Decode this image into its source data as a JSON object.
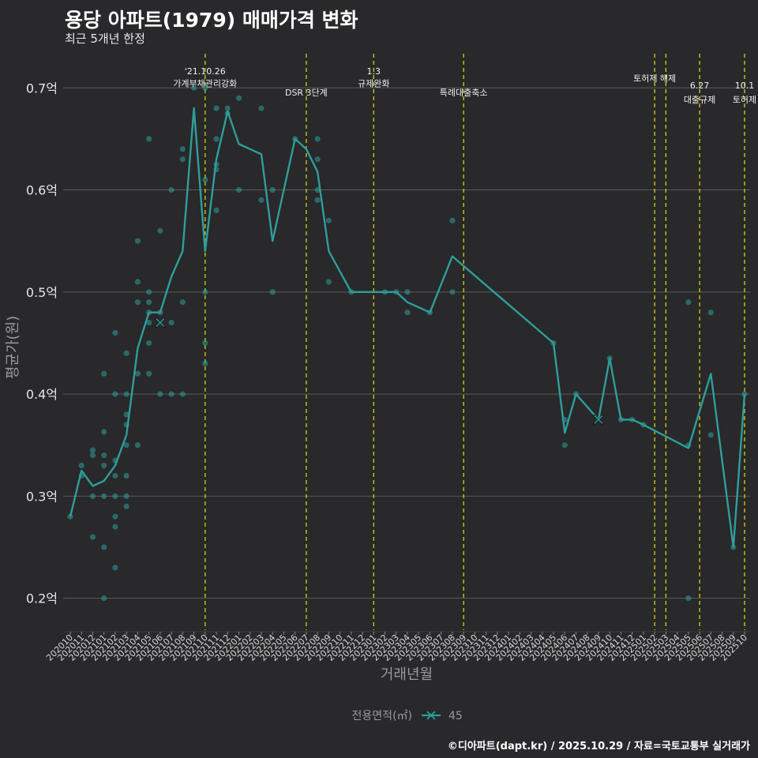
{
  "title": "용당 아파트(1979) 매매가격 변화",
  "subtitle": "최근 5개년 한정",
  "caption": "©디아파트(dapt.kr) / 2025.10.29 / 자료=국토교통부 실거래가",
  "colors": {
    "background": "#29282a",
    "series": "#2e9e9a",
    "grid": "#5a595b",
    "event": "#d4d40a"
  },
  "chart_data": {
    "type": "line",
    "xlabel": "거래년월",
    "ylabel": "평균가(원)",
    "ylim": [
      0.175,
      0.735
    ],
    "yticks": [
      0.2,
      0.3,
      0.4,
      0.5,
      0.6,
      0.7
    ],
    "ytick_labels": [
      "0.2억",
      "0.3억",
      "0.4억",
      "0.5억",
      "0.6억",
      "0.7억"
    ],
    "categories": [
      "202010",
      "202011",
      "202012",
      "202101",
      "202102",
      "202103",
      "202104",
      "202105",
      "202106",
      "202107",
      "202108",
      "202109",
      "202110",
      "202111",
      "202112",
      "202201",
      "202202",
      "202203",
      "202204",
      "202205",
      "202206",
      "202207",
      "202208",
      "202209",
      "202210",
      "202211",
      "202212",
      "202301",
      "202302",
      "202303",
      "202304",
      "202305",
      "202306",
      "202307",
      "202308",
      "202309",
      "202310",
      "202311",
      "202312",
      "202401",
      "202402",
      "202403",
      "202404",
      "202405",
      "202406",
      "202407",
      "202408",
      "202409",
      "202410",
      "202411",
      "202412",
      "202501",
      "202502",
      "202503",
      "202504",
      "202505",
      "202506",
      "202507",
      "202508",
      "202509",
      "202510"
    ],
    "legend": {
      "title": "전용면적(㎡)",
      "label": "45",
      "position": "bottom"
    },
    "series": [
      {
        "name": "45",
        "line": [
          {
            "x": "202010",
            "y": 0.28
          },
          {
            "x": "202011",
            "y": 0.325
          },
          {
            "x": "202012",
            "y": 0.31
          },
          {
            "x": "202101",
            "y": 0.315
          },
          {
            "x": "202102",
            "y": 0.33
          },
          {
            "x": "202103",
            "y": 0.36
          },
          {
            "x": "202104",
            "y": 0.445
          },
          {
            "x": "202105",
            "y": 0.48
          },
          {
            "x": "202106",
            "y": 0.48
          },
          {
            "x": "202107",
            "y": 0.515
          },
          {
            "x": "202108",
            "y": 0.54
          },
          {
            "x": "202109",
            "y": 0.68
          },
          {
            "x": "202110",
            "y": 0.54
          },
          {
            "x": "202111",
            "y": 0.63
          },
          {
            "x": "202112",
            "y": 0.677
          },
          {
            "x": "202201",
            "y": 0.645
          },
          {
            "x": "202203",
            "y": 0.635
          },
          {
            "x": "202204",
            "y": 0.55
          },
          {
            "x": "202206",
            "y": 0.65
          },
          {
            "x": "202207",
            "y": 0.64
          },
          {
            "x": "202208",
            "y": 0.618
          },
          {
            "x": "202209",
            "y": 0.54
          },
          {
            "x": "202211",
            "y": 0.5
          },
          {
            "x": "202301",
            "y": 0.5
          },
          {
            "x": "202302",
            "y": 0.5
          },
          {
            "x": "202303",
            "y": 0.5
          },
          {
            "x": "202304",
            "y": 0.49
          },
          {
            "x": "202306",
            "y": 0.48
          },
          {
            "x": "202308",
            "y": 0.535
          },
          {
            "x": "202405",
            "y": 0.45
          },
          {
            "x": "202406",
            "y": 0.362
          },
          {
            "x": "202407",
            "y": 0.4
          },
          {
            "x": "202409",
            "y": 0.375
          },
          {
            "x": "202410",
            "y": 0.435
          },
          {
            "x": "202411",
            "y": 0.375
          },
          {
            "x": "202412",
            "y": 0.375
          },
          {
            "x": "202501",
            "y": 0.37
          },
          {
            "x": "202505",
            "y": 0.347
          },
          {
            "x": "202507",
            "y": 0.42
          },
          {
            "x": "202509",
            "y": 0.25
          },
          {
            "x": "202510",
            "y": 0.4
          }
        ],
        "points": [
          {
            "x": "202010",
            "y": 0.28
          },
          {
            "x": "202011",
            "y": 0.33
          },
          {
            "x": "202011",
            "y": 0.32
          },
          {
            "x": "202012",
            "y": 0.345
          },
          {
            "x": "202012",
            "y": 0.34
          },
          {
            "x": "202012",
            "y": 0.3
          },
          {
            "x": "202012",
            "y": 0.26
          },
          {
            "x": "202101",
            "y": 0.42
          },
          {
            "x": "202101",
            "y": 0.363
          },
          {
            "x": "202101",
            "y": 0.34
          },
          {
            "x": "202101",
            "y": 0.33
          },
          {
            "x": "202101",
            "y": 0.3
          },
          {
            "x": "202101",
            "y": 0.25
          },
          {
            "x": "202101",
            "y": 0.2
          },
          {
            "x": "202102",
            "y": 0.46
          },
          {
            "x": "202102",
            "y": 0.4
          },
          {
            "x": "202102",
            "y": 0.335
          },
          {
            "x": "202102",
            "y": 0.32
          },
          {
            "x": "202102",
            "y": 0.3
          },
          {
            "x": "202102",
            "y": 0.28
          },
          {
            "x": "202102",
            "y": 0.27
          },
          {
            "x": "202102",
            "y": 0.23
          },
          {
            "x": "202103",
            "y": 0.44
          },
          {
            "x": "202103",
            "y": 0.4
          },
          {
            "x": "202103",
            "y": 0.38
          },
          {
            "x": "202103",
            "y": 0.37
          },
          {
            "x": "202103",
            "y": 0.35
          },
          {
            "x": "202103",
            "y": 0.32
          },
          {
            "x": "202103",
            "y": 0.3
          },
          {
            "x": "202103",
            "y": 0.29
          },
          {
            "x": "202104",
            "y": 0.55
          },
          {
            "x": "202104",
            "y": 0.51
          },
          {
            "x": "202104",
            "y": 0.49
          },
          {
            "x": "202104",
            "y": 0.42
          },
          {
            "x": "202104",
            "y": 0.35
          },
          {
            "x": "202105",
            "y": 0.65
          },
          {
            "x": "202105",
            "y": 0.5
          },
          {
            "x": "202105",
            "y": 0.49
          },
          {
            "x": "202105",
            "y": 0.48
          },
          {
            "x": "202105",
            "y": 0.47
          },
          {
            "x": "202105",
            "y": 0.45
          },
          {
            "x": "202105",
            "y": 0.42
          },
          {
            "x": "202106",
            "y": 0.56
          },
          {
            "x": "202106",
            "y": 0.48
          },
          {
            "x": "202106",
            "y": 0.4
          },
          {
            "x": "202107",
            "y": 0.6
          },
          {
            "x": "202107",
            "y": 0.47
          },
          {
            "x": "202107",
            "y": 0.4
          },
          {
            "x": "202108",
            "y": 0.64
          },
          {
            "x": "202108",
            "y": 0.63
          },
          {
            "x": "202108",
            "y": 0.49
          },
          {
            "x": "202108",
            "y": 0.4
          },
          {
            "x": "202109",
            "y": 0.7
          },
          {
            "x": "202110",
            "y": 0.7
          },
          {
            "x": "202110",
            "y": 0.61
          },
          {
            "x": "202110",
            "y": 0.5
          },
          {
            "x": "202110",
            "y": 0.45
          },
          {
            "x": "202110",
            "y": 0.43
          },
          {
            "x": "202111",
            "y": 0.68
          },
          {
            "x": "202111",
            "y": 0.65
          },
          {
            "x": "202111",
            "y": 0.625
          },
          {
            "x": "202111",
            "y": 0.62
          },
          {
            "x": "202111",
            "y": 0.58
          },
          {
            "x": "202112",
            "y": 0.68
          },
          {
            "x": "202112",
            "y": 0.675
          },
          {
            "x": "202201",
            "y": 0.69
          },
          {
            "x": "202201",
            "y": 0.6
          },
          {
            "x": "202203",
            "y": 0.68
          },
          {
            "x": "202203",
            "y": 0.59
          },
          {
            "x": "202204",
            "y": 0.6
          },
          {
            "x": "202204",
            "y": 0.5
          },
          {
            "x": "202206",
            "y": 0.65
          },
          {
            "x": "202208",
            "y": 0.65
          },
          {
            "x": "202208",
            "y": 0.63
          },
          {
            "x": "202208",
            "y": 0.6
          },
          {
            "x": "202208",
            "y": 0.59
          },
          {
            "x": "202209",
            "y": 0.57
          },
          {
            "x": "202209",
            "y": 0.51
          },
          {
            "x": "202211",
            "y": 0.5
          },
          {
            "x": "202302",
            "y": 0.5
          },
          {
            "x": "202303",
            "y": 0.5
          },
          {
            "x": "202304",
            "y": 0.5
          },
          {
            "x": "202304",
            "y": 0.48
          },
          {
            "x": "202306",
            "y": 0.48
          },
          {
            "x": "202308",
            "y": 0.57
          },
          {
            "x": "202308",
            "y": 0.5
          },
          {
            "x": "202405",
            "y": 0.45
          },
          {
            "x": "202406",
            "y": 0.375
          },
          {
            "x": "202406",
            "y": 0.35
          },
          {
            "x": "202407",
            "y": 0.4
          },
          {
            "x": "202410",
            "y": 0.435
          },
          {
            "x": "202411",
            "y": 0.375
          },
          {
            "x": "202412",
            "y": 0.375
          },
          {
            "x": "202501",
            "y": 0.37
          },
          {
            "x": "202505",
            "y": 0.49
          },
          {
            "x": "202505",
            "y": 0.35
          },
          {
            "x": "202505",
            "y": 0.2
          },
          {
            "x": "202507",
            "y": 0.48
          },
          {
            "x": "202507",
            "y": 0.36
          },
          {
            "x": "202509",
            "y": 0.25
          },
          {
            "x": "202510",
            "y": 0.4
          }
        ],
        "crosses": [
          {
            "x": "202106",
            "y": 0.47
          },
          {
            "x": "202409",
            "y": 0.375
          }
        ]
      }
    ],
    "events": [
      {
        "x": "202110",
        "lines": [
          "'21.10.26",
          "가계부채관리강화"
        ]
      },
      {
        "x": "202207",
        "lines": [
          "DSR 3단계"
        ]
      },
      {
        "x": "202301",
        "lines": [
          "1.3",
          "규제완화"
        ]
      },
      {
        "x": "202309",
        "lines": [
          "특례대출축소"
        ]
      },
      {
        "x": "202502",
        "lines": [
          "토허제 해제"
        ]
      },
      {
        "x": "202503",
        "lines": []
      },
      {
        "x": "202506",
        "lines": [
          "6.27",
          "대출규제"
        ]
      },
      {
        "x": "202510",
        "lines": [
          "10.1",
          "토허제"
        ]
      }
    ]
  }
}
